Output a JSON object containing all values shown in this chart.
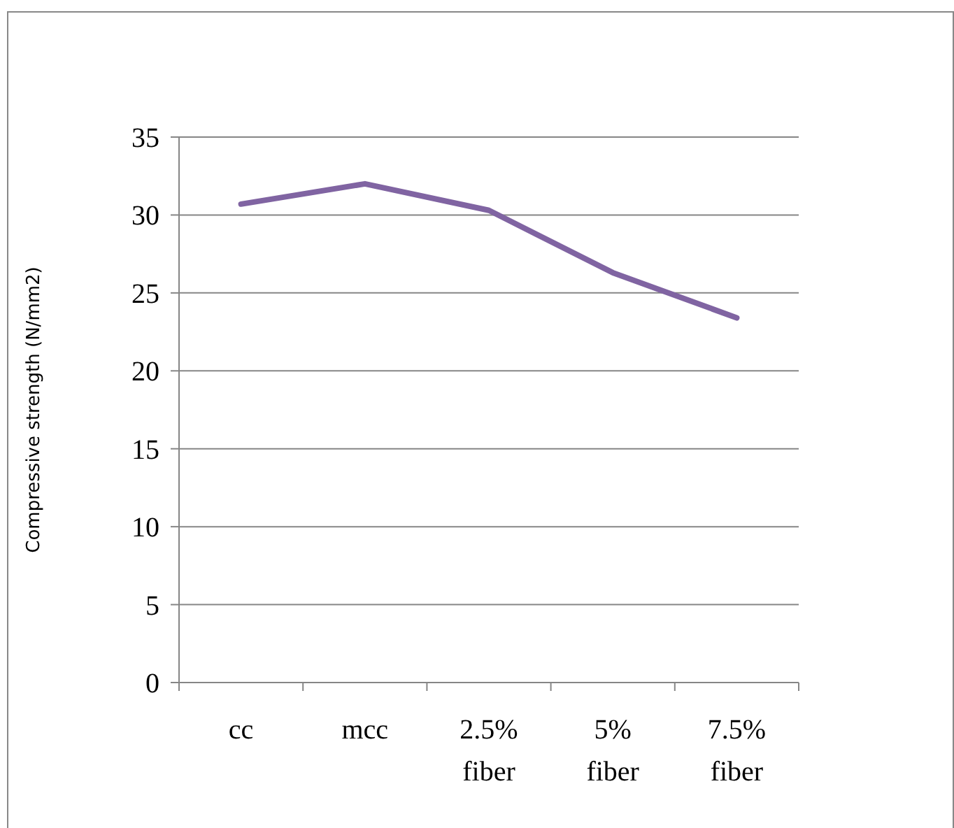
{
  "chart_data": {
    "type": "line",
    "ylabel": "Compressive strength (N/mm2)",
    "categories": [
      "cc",
      "mcc",
      "2.5% fiber",
      "5% fiber",
      "7.5% fiber"
    ],
    "series": [
      {
        "color": "#8064a2",
        "values": [
          30.7,
          32.0,
          30.3,
          26.3,
          23.4
        ]
      }
    ],
    "ylim": [
      0,
      35
    ],
    "yticks": [
      0,
      5,
      10,
      15,
      20,
      25,
      30,
      35
    ],
    "grid": "y",
    "marker": "none",
    "line_style": "solid"
  }
}
